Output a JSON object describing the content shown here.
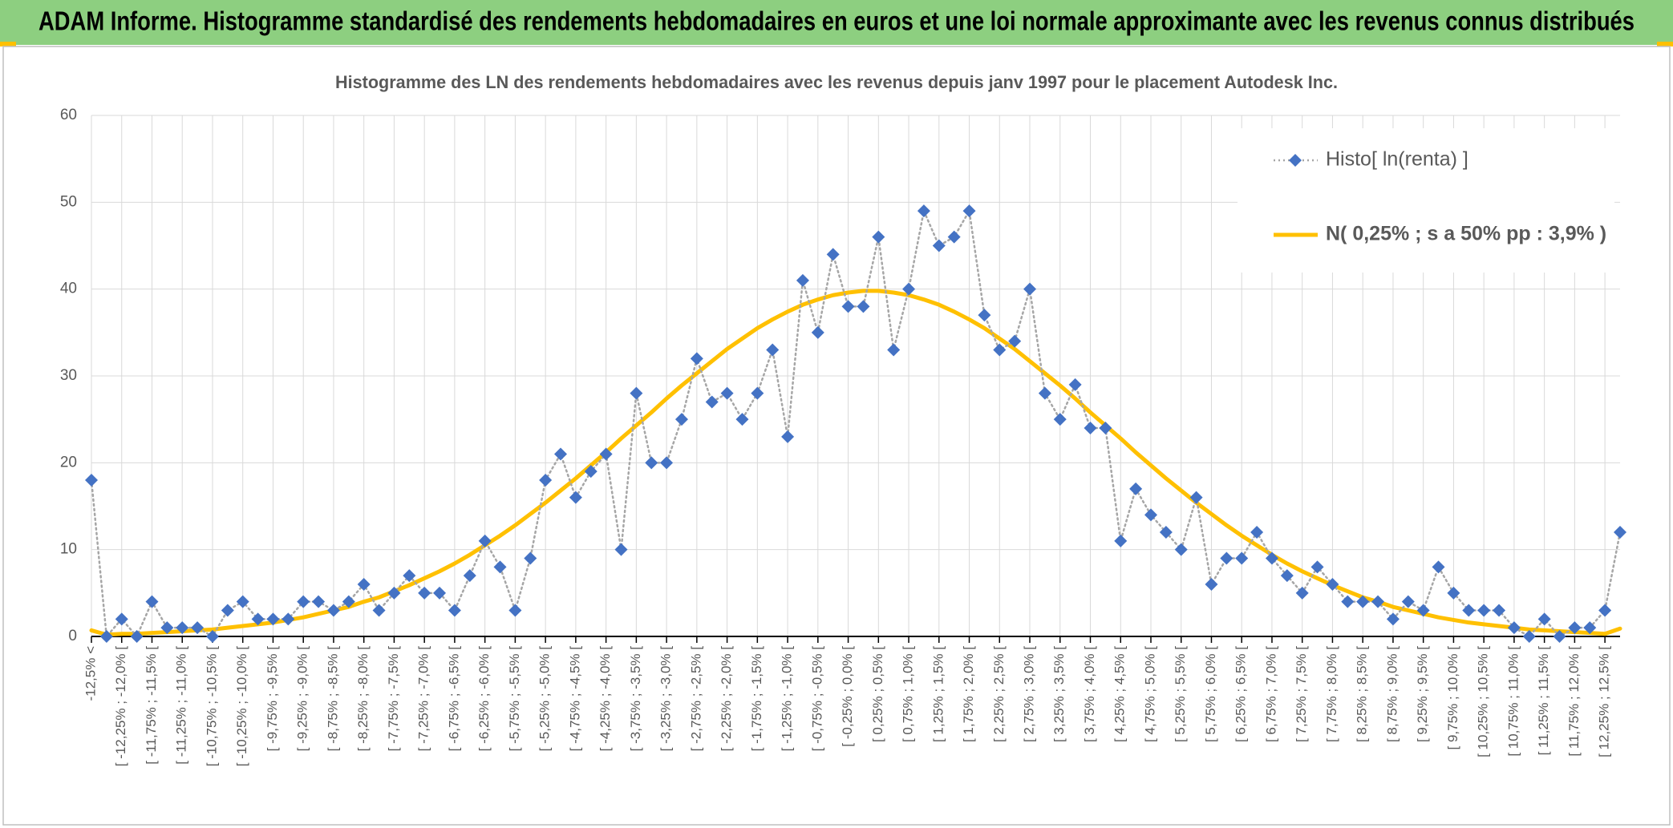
{
  "header": {
    "title": "ADAM Informe. Histogramme standardisé des rendements hebdomadaires en euros et une loi normale approximante avec les revenus connus distribués"
  },
  "chart_data": {
    "type": "line",
    "title": "Histogramme des LN des rendements hebdomadaires avec les revenus depuis janv 1997 pour le placement Autodesk Inc.",
    "categories": [
      "-12,5% <",
      null,
      "[ -12,25% ; -12,0% [",
      null,
      "[ -11,75% ; -11,5% [",
      null,
      "[ -11,25% ; -11,0% [",
      null,
      "[ -10,75% ; -10,5% [",
      null,
      "[ -10,25% ; -10,0% [",
      null,
      "[ -9,75% ; -9,5% [",
      null,
      "[ -9,25% ; -9,0% [",
      null,
      "[ -8,75% ; -8,5% [",
      null,
      "[ -8,25% ; -8,0% [",
      null,
      "[ -7,75% ; -7,5% [",
      null,
      "[ -7,25% ; -7,0% [",
      null,
      "[ -6,75% ; -6,5% [",
      null,
      "[ -6,25% ; -6,0% [",
      null,
      "[ -5,75% ; -5,5% [",
      null,
      "[ -5,25% ; -5,0% [",
      null,
      "[ -4,75% ; -4,5% [",
      null,
      "[ -4,25% ; -4,0% [",
      null,
      "[ -3,75% ; -3,5% [",
      null,
      "[ -3,25% ; -3,0% [",
      null,
      "[ -2,75% ; -2,5% [",
      null,
      "[ -2,25% ; -2,0% [",
      null,
      "[ -1,75% ; -1,5% [",
      null,
      "[ -1,25% ; -1,0% [",
      null,
      "[ -0,75% ; -0,5% [",
      null,
      "[ -0,25% ; 0,0% [",
      null,
      "[ 0,25% ; 0,5% [",
      null,
      "[ 0,75% ; 1,0% [",
      null,
      "[ 1,25% ; 1,5% [",
      null,
      "[ 1,75% ; 2,0% [",
      null,
      "[ 2,25% ; 2,5% [",
      null,
      "[ 2,75% ; 3,0% [",
      null,
      "[ 3,25% ; 3,5% [",
      null,
      "[ 3,75% ; 4,0% [",
      null,
      "[ 4,25% ; 4,5% [",
      null,
      "[ 4,75% ; 5,0% [",
      null,
      "[ 5,25% ; 5,5% [",
      null,
      "[ 5,75% ; 6,0% [",
      null,
      "[ 6,25% ; 6,5% [",
      null,
      "[ 6,75% ; 7,0% [",
      null,
      "[ 7,25% ; 7,5% [",
      null,
      "[ 7,75% ; 8,0% [",
      null,
      "[ 8,25% ; 8,5% [",
      null,
      "[ 8,75% ; 9,0% [",
      null,
      "[ 9,25% ; 9,5% [",
      null,
      "[ 9,75% ; 10,0% [",
      null,
      "[ 10,25% ; 10,5% [",
      null,
      "[ 10,75% ; 11,0% [",
      null,
      "[ 11,25% ; 11,5% [",
      null,
      "[ 11,75% ; 12,0% [",
      null,
      "[ 12,25% ; 12,5% [",
      null
    ],
    "series": [
      {
        "name": "Histo[ ln(renta) ]",
        "color": "#4472c4",
        "line_color": "#a6a6a6",
        "marker": "diamond",
        "line_style": "dotted",
        "values": [
          18,
          0,
          2,
          0,
          4,
          1,
          1,
          1,
          0,
          3,
          4,
          2,
          2,
          2,
          4,
          4,
          3,
          4,
          6,
          3,
          5,
          7,
          5,
          5,
          3,
          7,
          11,
          8,
          3,
          9,
          18,
          21,
          16,
          19,
          21,
          10,
          28,
          20,
          20,
          25,
          32,
          27,
          28,
          25,
          28,
          33,
          23,
          41,
          35,
          44,
          38,
          38,
          46,
          33,
          40,
          49,
          45,
          46,
          49,
          37,
          33,
          34,
          40,
          28,
          25,
          29,
          24,
          24,
          11,
          17,
          14,
          12,
          10,
          16,
          6,
          9,
          9,
          12,
          9,
          7,
          5,
          8,
          6,
          4,
          4,
          4,
          2,
          4,
          3,
          8,
          5,
          3,
          3,
          3,
          1,
          0,
          2,
          0,
          1,
          1,
          3,
          12
        ]
      },
      {
        "name": "N( 0,25% ; s a 50% pp : 3,9% )",
        "color": "#ffc000",
        "marker": "none",
        "line_style": "solid",
        "values": [
          0.7,
          0.2,
          0.3,
          0.3,
          0.4,
          0.5,
          0.6,
          0.7,
          0.8,
          1.0,
          1.2,
          1.4,
          1.6,
          1.9,
          2.2,
          2.6,
          3.0,
          3.4,
          4.0,
          4.5,
          5.2,
          5.9,
          6.7,
          7.5,
          8.4,
          9.4,
          10.5,
          11.6,
          12.8,
          14.1,
          15.4,
          16.8,
          18.2,
          19.7,
          21.2,
          22.8,
          24.3,
          25.8,
          27.4,
          28.9,
          30.3,
          31.7,
          33.1,
          34.3,
          35.5,
          36.5,
          37.4,
          38.2,
          38.8,
          39.3,
          39.6,
          39.8,
          39.8,
          39.6,
          39.3,
          38.8,
          38.2,
          37.4,
          36.5,
          35.5,
          34.3,
          33.1,
          31.7,
          30.3,
          28.9,
          27.4,
          25.8,
          24.3,
          22.8,
          21.2,
          19.7,
          18.2,
          16.8,
          15.4,
          14.1,
          12.8,
          11.6,
          10.5,
          9.4,
          8.4,
          7.5,
          6.7,
          5.9,
          5.2,
          4.5,
          4.0,
          3.4,
          3.0,
          2.6,
          2.2,
          1.9,
          1.6,
          1.4,
          1.2,
          1.0,
          0.8,
          0.7,
          0.6,
          0.5,
          0.4,
          0.3,
          0.9
        ]
      }
    ],
    "ylim": [
      0,
      60
    ],
    "yticks": [
      0,
      10,
      20,
      30,
      40,
      50,
      60
    ],
    "grid": true,
    "legend": "upper right"
  }
}
